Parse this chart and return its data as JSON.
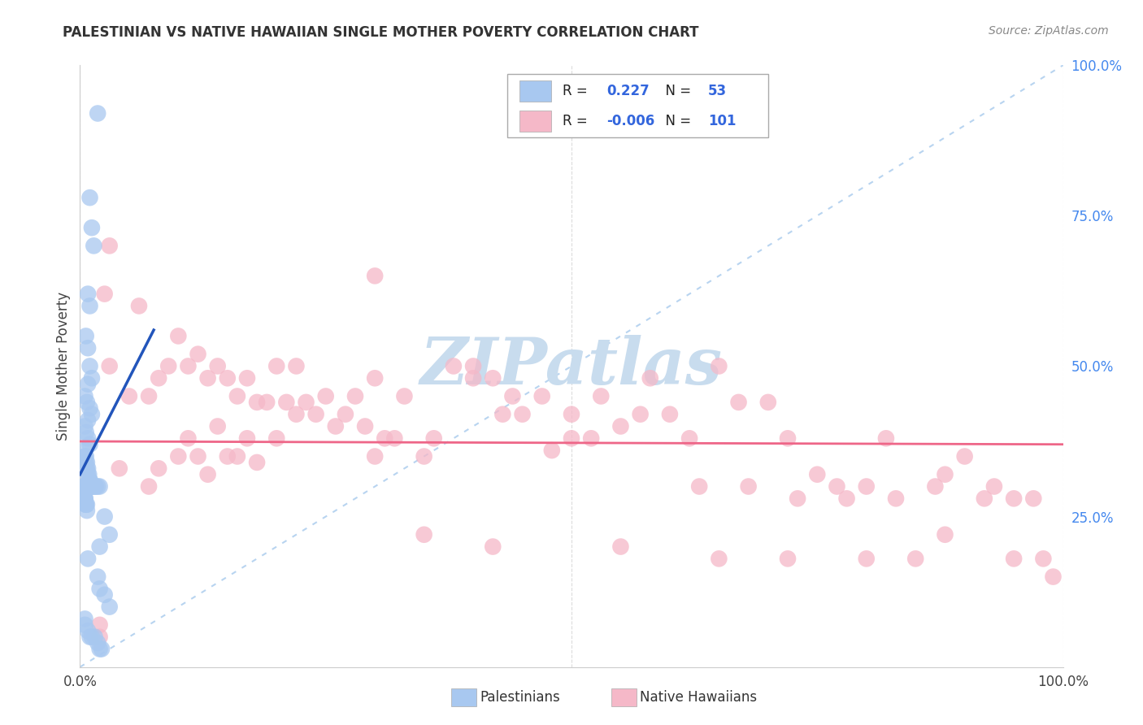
{
  "title": "PALESTINIAN VS NATIVE HAWAIIAN SINGLE MOTHER POVERTY CORRELATION CHART",
  "source": "Source: ZipAtlas.com",
  "ylabel": "Single Mother Poverty",
  "r_palestinian": 0.227,
  "n_palestinian": 53,
  "r_hawaiian": -0.006,
  "n_hawaiian": 101,
  "palestinian_color": "#A8C8F0",
  "hawaiian_color": "#F5B8C8",
  "blue_line_color": "#2255BB",
  "pink_line_color": "#EE6688",
  "diagonal_color": "#B8D4F0",
  "grid_color": "#CCCCCC",
  "right_axis_color": "#4488EE",
  "background_color": "#FFFFFF",
  "legend_text_dark": "#222222",
  "legend_value_color": "#3366DD",
  "xlim": [
    0,
    1.0
  ],
  "ylim": [
    0,
    1.0
  ],
  "yticks_right": [
    0.25,
    0.5,
    0.75,
    1.0
  ],
  "ytick_labels_right": [
    "25.0%",
    "50.0%",
    "75.0%",
    "100.0%"
  ],
  "watermark_color": "#C8DCEE"
}
